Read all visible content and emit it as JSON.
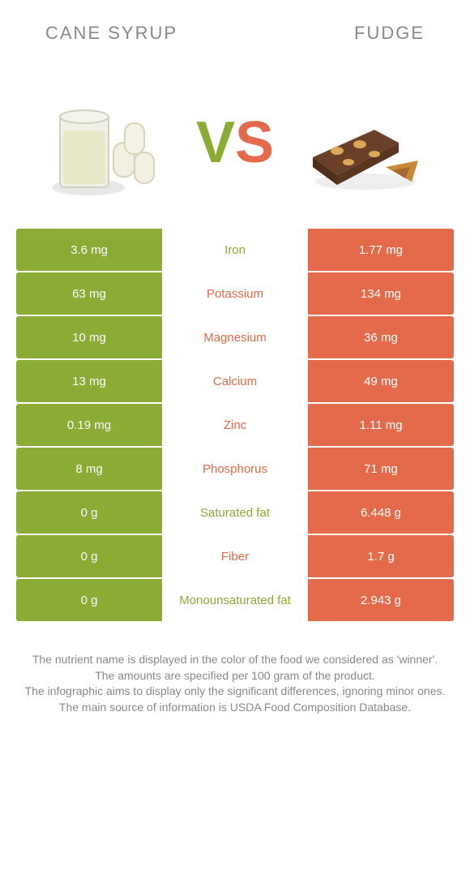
{
  "colors": {
    "left": "#8aab34",
    "right": "#e36a4b",
    "text": "#888888",
    "background": "#ffffff"
  },
  "header": {
    "left_title": "Cane syrup",
    "right_title": "Fudge"
  },
  "vs": {
    "v": "V",
    "s": "S"
  },
  "rows": [
    {
      "left": "3.6 mg",
      "label": "Iron",
      "winner": "left",
      "right": "1.77 mg"
    },
    {
      "left": "63 mg",
      "label": "Potassium",
      "winner": "right",
      "right": "134 mg"
    },
    {
      "left": "10 mg",
      "label": "Magnesium",
      "winner": "right",
      "right": "36 mg"
    },
    {
      "left": "13 mg",
      "label": "Calcium",
      "winner": "right",
      "right": "49 mg"
    },
    {
      "left": "0.19 mg",
      "label": "Zinc",
      "winner": "right",
      "right": "1.11 mg"
    },
    {
      "left": "8 mg",
      "label": "Phosphorus",
      "winner": "right",
      "right": "71 mg"
    },
    {
      "left": "0 g",
      "label": "Saturated fat",
      "winner": "left",
      "right": "6.448 g"
    },
    {
      "left": "0 g",
      "label": "Fiber",
      "winner": "right",
      "right": "1.7 g"
    },
    {
      "left": "0 g",
      "label": "Monounsaturated fat",
      "winner": "left",
      "right": "2.943 g"
    }
  ],
  "footnotes": [
    "The nutrient name is displayed in the color of the food we considered as 'winner'.",
    "The amounts are specified per 100 gram of the product.",
    "The infographic aims to display only the significant differences, ignoring minor ones.",
    "The main source of information is USDA Food Composition Database."
  ]
}
